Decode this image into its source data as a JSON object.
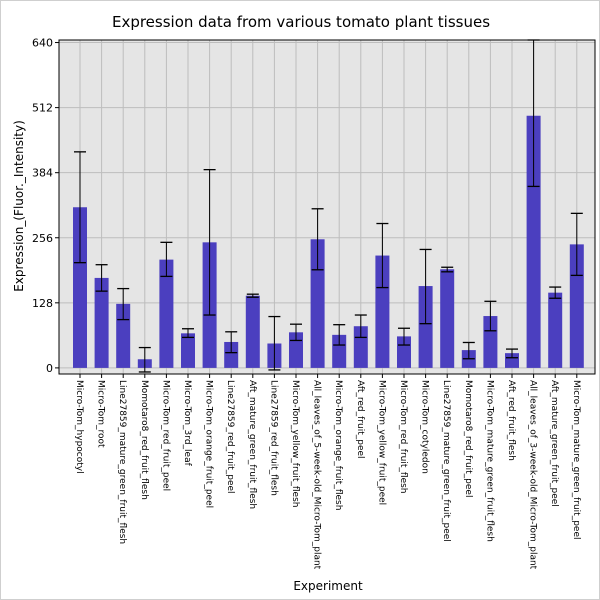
{
  "chart_data": {
    "type": "bar",
    "title": "Expression data from various tomato plant tissues",
    "xlabel": "Experiment",
    "ylabel": "Expression_(Fluor._Intensity)",
    "ylim": [
      -12,
      645
    ],
    "yticks": [
      0,
      128,
      256,
      384,
      512,
      640
    ],
    "grid": true,
    "bar_color": "#4b3fbf",
    "plot_bg": "#e5e5e5",
    "categories": [
      "Micro-Tom_hypocotyl",
      "Micro-Tom_root",
      "Line27859_mature_green_fruit_flesh",
      "Momotaro8_red_fruit_flesh",
      "Micro-Tom_red_fruit_peel",
      "Micro-Tom_3rd_leaf",
      "Micro-Tom_orange_fruit_peel",
      "Line27859_red_fruit_peel",
      "Aft_mature_green_fruit_flesh",
      "Line27859_red_fruit_flesh",
      "Micro-Tom_yellow_fruit_flesh",
      "All_leaves_of_5-week-old_Micro-Tom_plant",
      "Micro-Tom_orange_fruit_flesh",
      "Aft_red_fruit_peel",
      "Micro-Tom_yellow_fruit_peel",
      "Micro-Tom_red_fruit_flesh",
      "Micro-Tom_cotyledon",
      "Line27859_mature_green_fruit_peel",
      "Momotaro8_red_fruit_peel",
      "Micro-Tom_mature_green_fruit_flesh",
      "Aft_red_fruit_flesh",
      "All_leaves_of_3-week-old_Micro-Tom_plant",
      "Aft_mature_green_fruit_peel",
      "Micro-Tom_mature_green_fruit_peel"
    ],
    "values": [
      316,
      177,
      126,
      17,
      213,
      68,
      247,
      51,
      142,
      48,
      70,
      253,
      65,
      82,
      221,
      62,
      161,
      194,
      35,
      102,
      29,
      496,
      148,
      243
    ],
    "error_low": [
      207,
      151,
      95,
      -8,
      180,
      60,
      104,
      30,
      139,
      -4,
      54,
      193,
      45,
      60,
      158,
      45,
      87,
      189,
      18,
      73,
      20,
      357,
      137,
      182
    ],
    "error_high": [
      425,
      203,
      156,
      40,
      247,
      77,
      390,
      71,
      145,
      101,
      86,
      313,
      85,
      104,
      284,
      78,
      233,
      198,
      50,
      131,
      37,
      645,
      159,
      304
    ]
  }
}
